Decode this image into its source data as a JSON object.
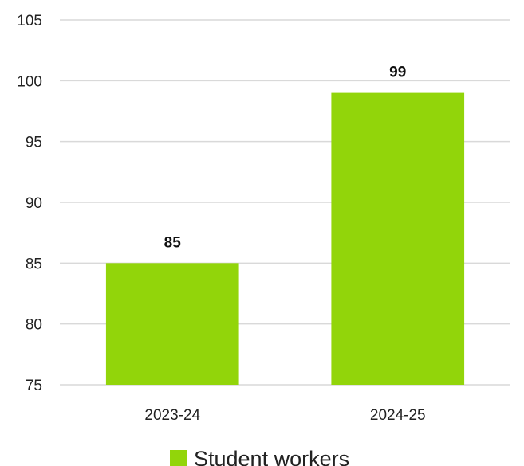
{
  "chart_data": {
    "type": "bar",
    "categories": [
      "2023-24",
      "2024-25"
    ],
    "series": [
      {
        "name": "Student workers",
        "values": [
          85,
          99
        ]
      }
    ],
    "ylim": [
      75,
      105
    ],
    "yticks": [
      75,
      80,
      85,
      90,
      95,
      100,
      105
    ],
    "grid": true,
    "legend_position": "bottom",
    "data_labels": [
      "85",
      "99"
    ],
    "colors": {
      "bar": "#92d50a",
      "grid": "#d9d9d9"
    }
  }
}
